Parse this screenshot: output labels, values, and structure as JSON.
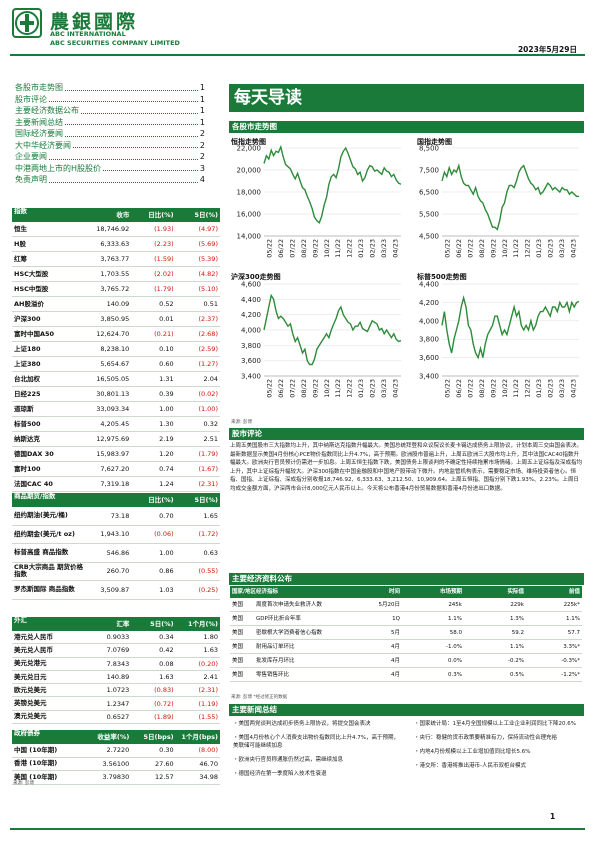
{
  "header": {
    "company_cn": "農銀國際",
    "company_en1": "ABC INTERNATIONAL",
    "company_en2": "ABC SECURITIES COMPANY LIMITED",
    "date": "2023年5月29日",
    "brand_color": "#1a7a3a"
  },
  "toc": [
    {
      "t": "各股市走势图",
      "p": "1"
    },
    {
      "t": "股市评论",
      "p": "1"
    },
    {
      "t": "主要经济数据公布",
      "p": "1"
    },
    {
      "t": "主要新闻总结",
      "p": "1"
    },
    {
      "t": "国际经济要闻",
      "p": "2"
    },
    {
      "t": "大中华经济要闻",
      "p": "2"
    },
    {
      "t": "企业要闻",
      "p": "2"
    },
    {
      "t": "中港两地上市的H股股价",
      "p": "3"
    },
    {
      "t": "免责声明",
      "p": "4"
    }
  ],
  "index_table": {
    "headers": [
      "指数",
      "收市",
      "日比(%)",
      "5日(%)"
    ],
    "rows": [
      [
        "恒生",
        "18,746.92",
        "(1.93)",
        "(4.97)"
      ],
      [
        "H股",
        "6,333.63",
        "(2.23)",
        "(5.69)"
      ],
      [
        "红筹",
        "3,763.77",
        "(1.59)",
        "(5.39)"
      ],
      [
        "HSC大型股",
        "1,703.55",
        "(2.02)",
        "(4.82)"
      ],
      [
        "HSC中型股",
        "3,765.72",
        "(1.79)",
        "(5.10)"
      ],
      [
        "AH股溢价",
        "140.09",
        "0.52",
        "0.51"
      ],
      [
        "沪深300",
        "3,850.95",
        "0.01",
        "(2.37)"
      ],
      [
        "富时中国A50",
        "12,624.70",
        "(0.21)",
        "(2.68)"
      ],
      [
        "上证180",
        "8,238.10",
        "0.10",
        "(2.59)"
      ],
      [
        "上证380",
        "5,654.67",
        "0.60",
        "(1.27)"
      ],
      [
        "台北加权",
        "16,505.05",
        "1.31",
        "2.04"
      ],
      [
        "日经225",
        "30,801.13",
        "0.39",
        "(0.02)"
      ],
      [
        "道琼斯",
        "33,093.34",
        "1.00",
        "(1.00)"
      ],
      [
        "标普500",
        "4,205.45",
        "1.30",
        "0.32"
      ],
      [
        "纳斯达克",
        "12,975.69",
        "2.19",
        "2.51"
      ],
      [
        "德国DAX 30",
        "15,983.97",
        "1.20",
        "(1.79)"
      ],
      [
        "富时100",
        "7,627.20",
        "0.74",
        "(1.67)"
      ],
      [
        "法国CAC 40",
        "7,319.18",
        "1.24",
        "(2.31)"
      ]
    ]
  },
  "commodity_table": {
    "headers": [
      "商品期货/指数",
      "",
      "日比(%)",
      "5日(%)"
    ],
    "rows": [
      [
        "纽约期油(美元/桶)",
        "73.18",
        "0.70",
        "1.65"
      ],
      [
        "纽约期金(美元/t oz)",
        "1,943.10",
        "(0.06)",
        "(1.72)"
      ],
      [
        "标普高盛 商品指数",
        "546.86",
        "1.00",
        "0.63"
      ],
      [
        "CRB大宗商品 期货价格指数",
        "260.70",
        "0.86",
        "(0.55)"
      ],
      [
        "罗杰斯国际 商品指数",
        "3,509.87",
        "1.03",
        "(0.25)"
      ]
    ]
  },
  "fx_table": {
    "headers": [
      "外汇",
      "汇率",
      "5日(%)",
      "1个月(%)"
    ],
    "rows": [
      [
        "港元兑人民币",
        "0.9033",
        "0.34",
        "1.80"
      ],
      [
        "美元兑人民币",
        "7.0769",
        "0.42",
        "1.63"
      ],
      [
        "美元兑港元",
        "7.8343",
        "0.08",
        "(0.20)"
      ],
      [
        "美元兑日元",
        "140.89",
        "1.63",
        "2.41"
      ],
      [
        "欧元兑美元",
        "1.0723",
        "(0.83)",
        "(2.31)"
      ],
      [
        "英镑兑美元",
        "1.2347",
        "(0.72)",
        "(1.19)"
      ],
      [
        "澳元兑美元",
        "0.6527",
        "(1.89)",
        "(1.55)"
      ]
    ]
  },
  "bond_table": {
    "headers": [
      "政府债券",
      "收益率(%)",
      "5日(bps)",
      "1个月(bps)"
    ],
    "rows": [
      [
        "中国 (10年期)",
        "2.7220",
        "0.30",
        "(8.00)"
      ],
      [
        "香港 (10年期)",
        "3.56100",
        "27.60",
        "46.70"
      ],
      [
        "美国 (10年期)",
        "3.79830",
        "12.57",
        "34.98"
      ]
    ],
    "source": "来源: 彭博"
  },
  "main_title": "每天导读",
  "charts_section": "各股市走势图",
  "charts": [
    {
      "title": "恒指走势图",
      "ylim": [
        14000,
        22000
      ],
      "yticks": [
        "22,000",
        "20,000",
        "18,000",
        "16,000",
        "14,000"
      ],
      "xticks": [
        "05/22",
        "06/22",
        "07/22",
        "08/22",
        "09/22",
        "10/22",
        "11/22",
        "12/22",
        "01/23",
        "02/23",
        "03/23",
        "04/23"
      ],
      "values": [
        20600,
        21300,
        21000,
        21800,
        21300,
        21700,
        21600,
        22100,
        21200,
        20500,
        20300,
        20100,
        19600,
        19200,
        19700,
        19000,
        18400,
        18200,
        17600,
        17100,
        16500,
        15700,
        15400,
        15200,
        15800,
        16800,
        17500,
        18700,
        19400,
        19600,
        19300,
        20100,
        21200,
        21700,
        22000,
        21500,
        20900,
        20300,
        20100,
        19600,
        19800,
        19000,
        19300,
        20000,
        20400,
        20300,
        19900,
        20000,
        19800,
        19600,
        20200,
        19900,
        19800,
        19400,
        19600,
        19100,
        18800,
        18700
      ]
    },
    {
      "title": "国指走势图",
      "ylim": [
        4500,
        8500
      ],
      "yticks": [
        "8,500",
        "7,500",
        "6,500",
        "5,500",
        "4,500"
      ],
      "xticks": [
        "05/22",
        "06/22",
        "07/22",
        "08/22",
        "09/22",
        "10/22",
        "11/22",
        "12/22",
        "01/23",
        "02/23",
        "03/23",
        "04/23"
      ],
      "values": [
        7000,
        7400,
        7200,
        7600,
        7300,
        7500,
        7400,
        7700,
        7200,
        6900,
        6800,
        6800,
        6600,
        6400,
        6700,
        6300,
        6100,
        6000,
        5700,
        5500,
        5200,
        4900,
        4900,
        4800,
        5200,
        5800,
        6000,
        6500,
        6800,
        6800,
        6700,
        7000,
        7400,
        7600,
        7700,
        7400,
        7100,
        6900,
        6800,
        6600,
        6700,
        6400,
        6500,
        6700,
        6900,
        6800,
        6600,
        6700,
        6600,
        6500,
        6700,
        6600,
        6600,
        6400,
        6500,
        6400,
        6300,
        6300
      ]
    },
    {
      "title": "沪深300走势图",
      "ylim": [
        3400,
        4600
      ],
      "yticks": [
        "4,600",
        "4,400",
        "4,200",
        "4,000",
        "3,800",
        "3,600",
        "3,400"
      ],
      "xticks": [
        "05/22",
        "06/22",
        "07/22",
        "08/22",
        "09/22",
        "10/22",
        "11/22",
        "12/22",
        "01/23",
        "02/23",
        "03/23",
        "04/23"
      ],
      "values": [
        4000,
        4150,
        4300,
        4450,
        4400,
        4250,
        4150,
        4180,
        4150,
        4100,
        4050,
        4080,
        3950,
        3850,
        3900,
        3800,
        3700,
        3750,
        3600,
        3550,
        3550,
        3620,
        3750,
        3800,
        3850,
        3900,
        3950,
        3900,
        4000,
        4080,
        4150,
        4250,
        4300,
        4200,
        4150,
        4100,
        4080,
        4000,
        4050,
        4050,
        4100,
        4020,
        4000,
        3980,
        4050,
        4120,
        4100,
        4080,
        4000,
        4020,
        3950,
        4000,
        3950,
        3900,
        3950,
        3880,
        3850,
        3860
      ]
    },
    {
      "title": "标普500走势图",
      "ylim": [
        3400,
        4400
      ],
      "yticks": [
        "4,400",
        "4,200",
        "4,000",
        "3,800",
        "3,600",
        "3,400"
      ],
      "xticks": [
        "05/22",
        "06/22",
        "07/22",
        "08/22",
        "09/22",
        "10/22",
        "11/22",
        "12/22",
        "01/23",
        "02/23",
        "03/23",
        "04/23"
      ],
      "values": [
        3950,
        4100,
        3900,
        3750,
        3650,
        3800,
        3900,
        4000,
        4150,
        4250,
        4150,
        3950,
        3900,
        3750,
        3650,
        3600,
        3700,
        3600,
        3750,
        3850,
        3900,
        3950,
        4050,
        4050,
        3950,
        3850,
        3900,
        3850,
        3950,
        4050,
        4150,
        4050,
        4100,
        3950,
        3900,
        3950,
        3900,
        4000,
        3900,
        3950,
        4050,
        4100,
        4100,
        4150,
        4100,
        4050,
        4150,
        4150,
        4100,
        4200,
        4150,
        4150,
        4200,
        4100,
        4200,
        4150,
        4200,
        4210
      ]
    }
  ],
  "chart_source": "来源: 彭博",
  "commentary_title": "股市评论",
  "commentary": "上周五美国股市三大指数均上升，其中纳斯达克指数升幅最大。美国总统拜登和众议院议长麦卡锡达成债务上限协议，计划本周三交由国会表决。最新数据显示美国4月份核心PCE物价指数同比上升4.7%，高于预期。欧洲股市普遍上升，上周五欧洲三大股市均上升，其中法国CAC40指数升幅最大。欧洲央行官员预计仍需进一步加息。上周五恒生指数下跌，美国债务上限谈判的不确定性持续拖累市场情绪。上周五上证综指及深成指均上升，其中上证综指升幅较大。沪深300指数在中国金融股和中国地产股带动下微升。内地监管机构表示，需要稳定市场、维持投资者信心。恒指、国指、上证综指、深成指分别收报18,746.92、6,333.63、3,212.50、10,909.64。上周五恒指、国指分别下跌1.93%、2.23%。上周日均成交金额方面，沪深两市合计8,000亿元人民币以上。今天将公布香港4月份贸易数据和香港4月份进出口数据。",
  "eco_title": "主要经济资料公布",
  "eco_table": {
    "headers": [
      "国家/地区",
      "经济指标",
      "时间",
      "市场预期",
      "实际值",
      "前值"
    ],
    "rows": [
      [
        "美国",
        "周度首次申请失业救济人数",
        "5月20日",
        "245k",
        "229k",
        "225k*"
      ],
      [
        "美国",
        "GDP环比折合年率",
        "1Q",
        "1.1%",
        "1.3%",
        "1.1%"
      ],
      [
        "美国",
        "密歇根大学消费者信心指数",
        "5月",
        "58.0",
        "59.2",
        "57.7"
      ],
      [
        "美国",
        "耐用品订单环比",
        "4月",
        "-1.0%",
        "1.1%",
        "3.3%*"
      ],
      [
        "美国",
        "批发库存月环比",
        "4月",
        "0.0%",
        "-0.2%",
        "-0.3%*"
      ],
      [
        "美国",
        "零售销售环比",
        "4月",
        "0.3%",
        "0.5%",
        "-1.2%*"
      ]
    ],
    "source": "来源: 彭博 *经过修正的数据"
  },
  "news_title": "主要新闻总结",
  "news_left": [
    "・美国两党谈判达成初步债务上限协议，将提交国会表决",
    "・美国4月份核心个人消费支出物价指数同比上升4.7%，高于预期，美联储可能继续加息",
    "・欧洲央行官员称通胀仍然过高，需继续加息",
    "・德国经济在第一季度陷入技术性衰退"
  ],
  "news_right": [
    "・国家统计局：1至4月全国规模以上工业企业利润同比下降20.6%",
    "・央行：稳健的货币政策要精准有力，保持流动性合理充裕",
    "・内地4月份规模以上工业增加值同比增长5.6%",
    "・港交所：香港将推出港币-人民币双柜台模式"
  ],
  "page_number": "1"
}
